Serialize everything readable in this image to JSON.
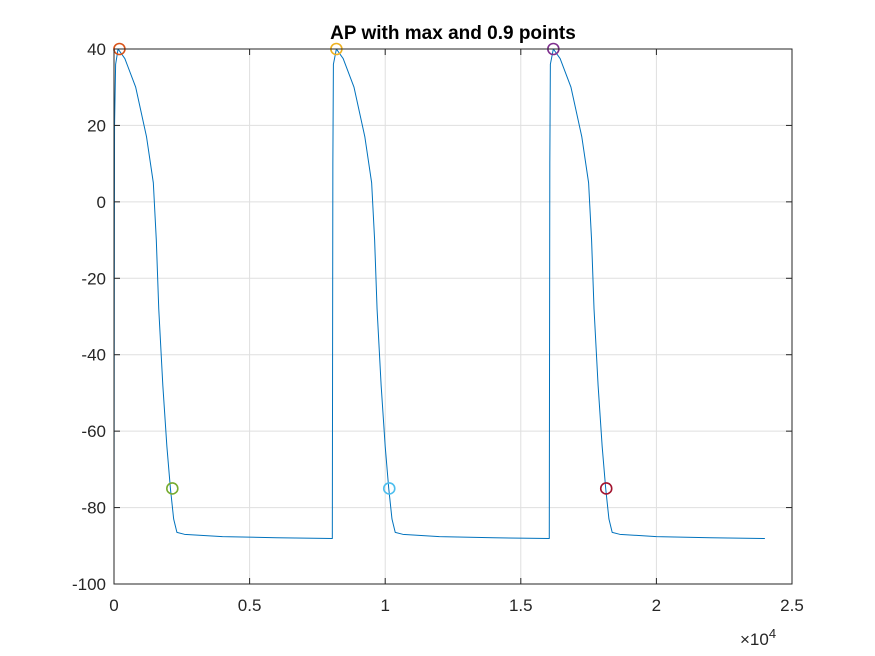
{
  "chart_data": {
    "type": "line",
    "title": "AP with max and 0.9 points",
    "xlabel": "",
    "ylabel": "",
    "xlim": [
      0,
      25000
    ],
    "ylim": [
      -100,
      40
    ],
    "xticks": [
      0,
      5000,
      10000,
      15000,
      20000,
      25000
    ],
    "xtick_labels": [
      "0",
      "0.5",
      "1",
      "1.5",
      "2",
      "2.5"
    ],
    "x_exponent_label": {
      "base": "×10",
      "power": "4"
    },
    "yticks": [
      -100,
      -80,
      -60,
      -40,
      -20,
      0,
      20,
      40
    ],
    "ytick_labels": [
      "-100",
      "-80",
      "-60",
      "-40",
      "-20",
      "0",
      "20",
      "40"
    ],
    "grid": true,
    "line_color": "#0072BD",
    "series": [
      {
        "values": [
          [
            0,
            -88
          ],
          [
            20,
            20
          ],
          [
            60,
            36
          ],
          [
            150,
            40
          ],
          [
            400,
            37.5
          ],
          [
            800,
            30
          ],
          [
            1200,
            17
          ],
          [
            1450,
            5
          ],
          [
            1560,
            -10
          ],
          [
            1650,
            -28
          ],
          [
            1800,
            -48
          ],
          [
            1950,
            -64
          ],
          [
            2080,
            -75
          ],
          [
            2200,
            -83
          ],
          [
            2320,
            -86.5
          ],
          [
            2600,
            -87
          ],
          [
            4000,
            -87.6
          ],
          [
            6000,
            -87.9
          ],
          [
            8050,
            -88.1
          ],
          [
            8070,
            10
          ],
          [
            8090,
            36
          ],
          [
            8200,
            40
          ],
          [
            8450,
            37.5
          ],
          [
            8850,
            30
          ],
          [
            9250,
            17
          ],
          [
            9500,
            5
          ],
          [
            9610,
            -10
          ],
          [
            9700,
            -28
          ],
          [
            9850,
            -48
          ],
          [
            10000,
            -64
          ],
          [
            10130,
            -75
          ],
          [
            10250,
            -83
          ],
          [
            10370,
            -86.5
          ],
          [
            10650,
            -87
          ],
          [
            12000,
            -87.6
          ],
          [
            14000,
            -87.9
          ],
          [
            16050,
            -88.1
          ],
          [
            16070,
            10
          ],
          [
            16090,
            36
          ],
          [
            16200,
            40
          ],
          [
            16450,
            37.5
          ],
          [
            16850,
            30
          ],
          [
            17250,
            17
          ],
          [
            17500,
            5
          ],
          [
            17610,
            -10
          ],
          [
            17700,
            -28
          ],
          [
            17850,
            -48
          ],
          [
            18000,
            -64
          ],
          [
            18130,
            -75
          ],
          [
            18250,
            -83
          ],
          [
            18370,
            -86.5
          ],
          [
            18650,
            -87
          ],
          [
            20000,
            -87.6
          ],
          [
            22000,
            -87.9
          ],
          [
            24000,
            -88.1
          ]
        ]
      }
    ],
    "markers": [
      {
        "x": 200,
        "y": 40,
        "color": "#D95319"
      },
      {
        "x": 2150,
        "y": -75,
        "color": "#77AC30"
      },
      {
        "x": 8200,
        "y": 40,
        "color": "#EDB120"
      },
      {
        "x": 10150,
        "y": -75,
        "color": "#4DBEEE"
      },
      {
        "x": 16200,
        "y": 40,
        "color": "#7E2F8E"
      },
      {
        "x": 18150,
        "y": -75,
        "color": "#A2142F"
      }
    ]
  }
}
